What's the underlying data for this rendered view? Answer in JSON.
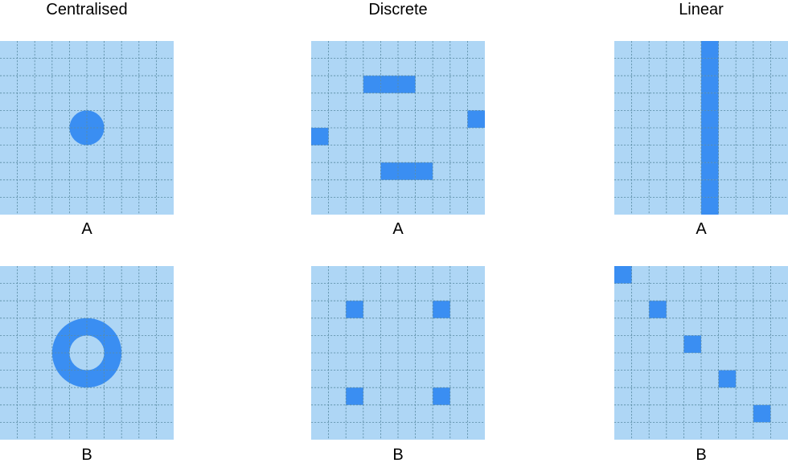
{
  "colors": {
    "background": "#aed6f5",
    "filled": "#3a8ef2",
    "grid": "#5a8ca3"
  },
  "grid_size": 10,
  "columns": [
    {
      "title": "Centralised",
      "panels": [
        {
          "label": "A",
          "shape": "disc",
          "cells": []
        },
        {
          "label": "B",
          "shape": "ring",
          "cells": []
        }
      ]
    },
    {
      "title": "Discrete",
      "panels": [
        {
          "label": "A",
          "shape": "cells",
          "cells": [
            [
              3,
              2
            ],
            [
              4,
              2
            ],
            [
              5,
              2
            ],
            [
              9,
              4
            ],
            [
              0,
              5
            ],
            [
              4,
              7
            ],
            [
              5,
              7
            ],
            [
              6,
              7
            ]
          ]
        },
        {
          "label": "B",
          "shape": "cells",
          "cells": [
            [
              2,
              2
            ],
            [
              7,
              2
            ],
            [
              2,
              7
            ],
            [
              7,
              7
            ]
          ]
        }
      ]
    },
    {
      "title": "Linear",
      "panels": [
        {
          "label": "A",
          "shape": "cells",
          "cells": [
            [
              5,
              0
            ],
            [
              5,
              1
            ],
            [
              5,
              2
            ],
            [
              5,
              3
            ],
            [
              5,
              4
            ],
            [
              5,
              5
            ],
            [
              5,
              6
            ],
            [
              5,
              7
            ],
            [
              5,
              8
            ],
            [
              5,
              9
            ]
          ]
        },
        {
          "label": "B",
          "shape": "cells",
          "cells": [
            [
              0,
              0
            ],
            [
              2,
              2
            ],
            [
              4,
              4
            ],
            [
              6,
              6
            ],
            [
              8,
              8
            ]
          ]
        }
      ]
    }
  ]
}
